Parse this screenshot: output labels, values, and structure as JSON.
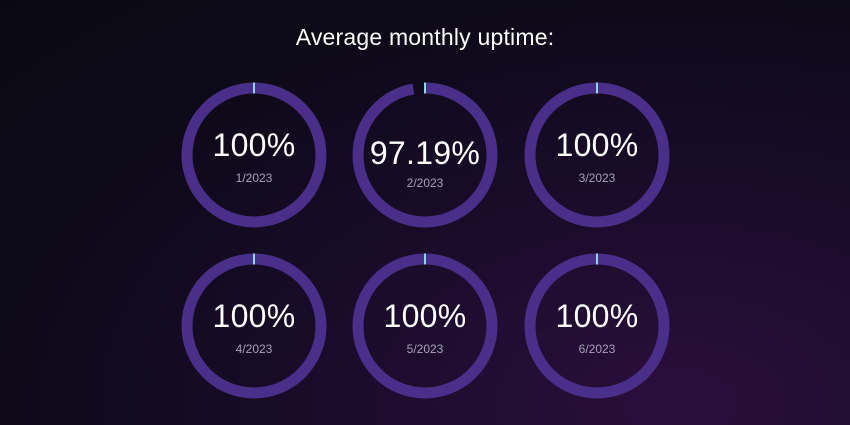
{
  "title": "Average monthly uptime:",
  "colors": {
    "ring": "#4a2f8a",
    "marker": "#8fd6e4",
    "value_text": "#ffffff",
    "label_text": "#a7a2b6",
    "background": "#0c0a17"
  },
  "chart_data": {
    "type": "gauge",
    "title": "Average monthly uptime:",
    "unit": "%",
    "range": [
      0,
      100
    ],
    "items": [
      {
        "month": "1/2023",
        "value": 100,
        "value_label": "100%"
      },
      {
        "month": "2/2023",
        "value": 97.19,
        "value_label": "97.19%"
      },
      {
        "month": "3/2023",
        "value": 100,
        "value_label": "100%"
      },
      {
        "month": "4/2023",
        "value": 100,
        "value_label": "100%"
      },
      {
        "month": "5/2023",
        "value": 100,
        "value_label": "100%"
      },
      {
        "month": "6/2023",
        "value": 100,
        "value_label": "100%"
      }
    ]
  }
}
